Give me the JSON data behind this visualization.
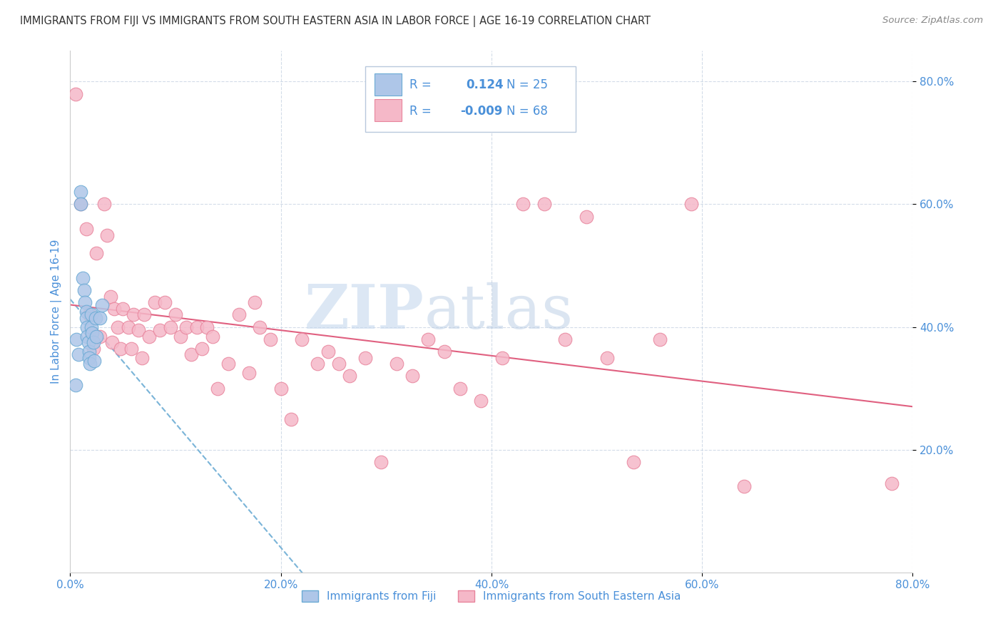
{
  "title": "IMMIGRANTS FROM FIJI VS IMMIGRANTS FROM SOUTH EASTERN ASIA IN LABOR FORCE | AGE 16-19 CORRELATION CHART",
  "source": "Source: ZipAtlas.com",
  "ylabel": "In Labor Force | Age 16-19",
  "xlim": [
    0.0,
    0.8
  ],
  "ylim": [
    0.0,
    0.85
  ],
  "xtick_vals": [
    0.0,
    0.2,
    0.4,
    0.6,
    0.8
  ],
  "xtick_labels": [
    "0.0%",
    "20.0%",
    "40.0%",
    "60.0%",
    "80.0%"
  ],
  "ytick_vals": [
    0.2,
    0.4,
    0.6,
    0.8
  ],
  "ytick_labels": [
    "20.0%",
    "40.0%",
    "60.0%",
    "80.0%"
  ],
  "legend1_label": "Immigrants from Fiji",
  "legend2_label": "Immigrants from South Eastern Asia",
  "fiji_R": 0.124,
  "fiji_N": 25,
  "sea_R": -0.009,
  "sea_N": 68,
  "fiji_color": "#aec6e8",
  "sea_color": "#f5b8c8",
  "fiji_edge_color": "#6aaad4",
  "sea_edge_color": "#e8849c",
  "trend_fiji_color": "#7ab4d8",
  "trend_sea_color": "#e06080",
  "watermark_zip_color": "#c8d8ec",
  "watermark_atlas_color": "#b8cce4",
  "grid_color": "#c8d4e4",
  "axis_color": "#4a90d9",
  "label_color": "#555555",
  "fiji_x": [
    0.005,
    0.006,
    0.008,
    0.01,
    0.01,
    0.012,
    0.013,
    0.014,
    0.015,
    0.015,
    0.016,
    0.016,
    0.017,
    0.018,
    0.018,
    0.019,
    0.02,
    0.02,
    0.021,
    0.022,
    0.023,
    0.024,
    0.025,
    0.028,
    0.03
  ],
  "fiji_y": [
    0.305,
    0.38,
    0.355,
    0.62,
    0.6,
    0.48,
    0.46,
    0.44,
    0.425,
    0.415,
    0.4,
    0.385,
    0.375,
    0.36,
    0.35,
    0.34,
    0.42,
    0.4,
    0.39,
    0.375,
    0.345,
    0.415,
    0.385,
    0.415,
    0.435
  ],
  "sea_x": [
    0.005,
    0.01,
    0.015,
    0.018,
    0.02,
    0.022,
    0.025,
    0.028,
    0.032,
    0.035,
    0.038,
    0.04,
    0.042,
    0.045,
    0.048,
    0.05,
    0.055,
    0.058,
    0.06,
    0.065,
    0.068,
    0.07,
    0.075,
    0.08,
    0.085,
    0.09,
    0.095,
    0.1,
    0.105,
    0.11,
    0.115,
    0.12,
    0.125,
    0.13,
    0.135,
    0.14,
    0.15,
    0.16,
    0.17,
    0.175,
    0.18,
    0.19,
    0.2,
    0.21,
    0.22,
    0.235,
    0.245,
    0.255,
    0.265,
    0.28,
    0.295,
    0.31,
    0.325,
    0.34,
    0.355,
    0.37,
    0.39,
    0.41,
    0.43,
    0.45,
    0.47,
    0.49,
    0.51,
    0.535,
    0.56,
    0.59,
    0.64,
    0.78
  ],
  "sea_y": [
    0.78,
    0.6,
    0.56,
    0.42,
    0.39,
    0.365,
    0.52,
    0.385,
    0.6,
    0.55,
    0.45,
    0.375,
    0.43,
    0.4,
    0.365,
    0.43,
    0.4,
    0.365,
    0.42,
    0.395,
    0.35,
    0.42,
    0.385,
    0.44,
    0.395,
    0.44,
    0.4,
    0.42,
    0.385,
    0.4,
    0.355,
    0.4,
    0.365,
    0.4,
    0.385,
    0.3,
    0.34,
    0.42,
    0.325,
    0.44,
    0.4,
    0.38,
    0.3,
    0.25,
    0.38,
    0.34,
    0.36,
    0.34,
    0.32,
    0.35,
    0.18,
    0.34,
    0.32,
    0.38,
    0.36,
    0.3,
    0.28,
    0.35,
    0.6,
    0.6,
    0.38,
    0.58,
    0.35,
    0.18,
    0.38,
    0.6,
    0.14,
    0.145
  ]
}
